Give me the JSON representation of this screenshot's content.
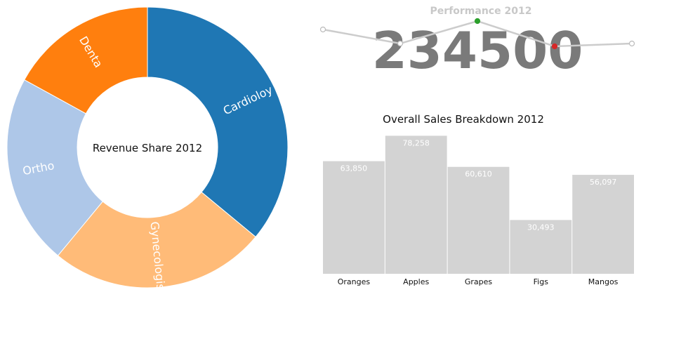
{
  "chart_data": [
    {
      "type": "pie",
      "title": "Revenue Share 2012",
      "categories": [
        "Cardioloy",
        "Gynecologist",
        "Ortho",
        "Denta"
      ],
      "values": [
        36,
        25,
        22,
        17
      ],
      "colors": [
        "#1f77b4",
        "#ffbb78",
        "#aec7e8",
        "#ff7f0e"
      ],
      "donut": true
    },
    {
      "type": "line",
      "title": "Performance 2012",
      "headline_value": "234500",
      "values": [
        234,
        224,
        240,
        222,
        224
      ],
      "highlight": {
        "max_color": "#2ca02c",
        "min_color": "#d62728"
      },
      "line_color": "#cccccc"
    },
    {
      "type": "bar",
      "title": "Overall Sales Breakdown 2012",
      "categories": [
        "Oranges",
        "Apples",
        "Grapes",
        "Figs",
        "Mangos"
      ],
      "values": [
        63850,
        78258,
        60610,
        30493,
        56097
      ],
      "value_labels": [
        "63,850",
        "78,258",
        "60,610",
        "30,493",
        "56,097"
      ],
      "bar_color": "#d3d3d3",
      "ylim": [
        0,
        80000
      ]
    }
  ]
}
